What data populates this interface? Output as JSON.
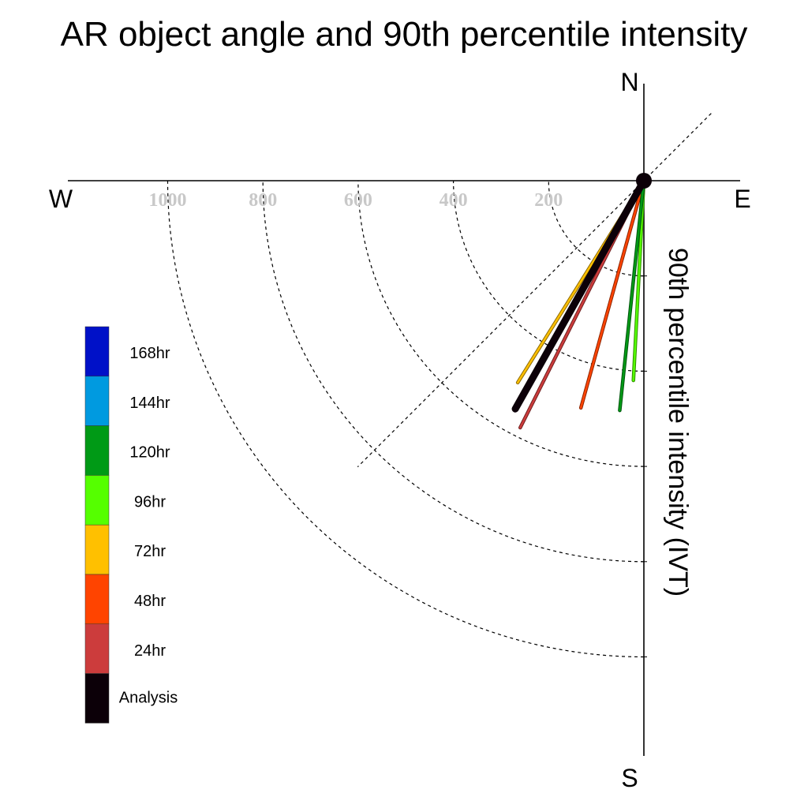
{
  "chart_data": {
    "type": "polar-vector",
    "title": "AR object angle and 90th percentile intensity",
    "radial_label": "90th percentile intensity (IVT)",
    "compass": {
      "north": "N",
      "south": "S",
      "east": "E",
      "west": "W"
    },
    "radial_ticks": [
      200,
      400,
      600,
      800,
      1000
    ],
    "radial_tick_labels": [
      "200",
      "400",
      "600",
      "800",
      "1000"
    ],
    "rlim": [
      0,
      1000
    ],
    "angle_convention": "degrees clockwise from north",
    "grid": true,
    "legend_placement": "left",
    "series": [
      {
        "name": "24hr",
        "color": "#cc3c3c",
        "angle": 206.6,
        "value": 580
      },
      {
        "name": "48hr",
        "color": "#ff4400",
        "angle": 195.5,
        "value": 495
      },
      {
        "name": "72hr",
        "color": "#ffc000",
        "angle": 212.0,
        "value": 500
      },
      {
        "name": "96hr",
        "color": "#55ff00",
        "angle": 183.0,
        "value": 420
      },
      {
        "name": "120hr",
        "color": "#009a16",
        "angle": 186.0,
        "value": 485
      },
      {
        "name": "Analysis",
        "color": "#0c0008",
        "angle": 209.4,
        "value": 550
      }
    ],
    "legend": [
      {
        "label": "168hr",
        "color": "#0011c8"
      },
      {
        "label": "144hr",
        "color": "#009ae0"
      },
      {
        "label": "120hr",
        "color": "#009a16"
      },
      {
        "label": "96hr",
        "color": "#55ff00"
      },
      {
        "label": "72hr",
        "color": "#ffc000"
      },
      {
        "label": "48hr",
        "color": "#ff4400"
      },
      {
        "label": "24hr",
        "color": "#cc3c3c"
      },
      {
        "label": "Analysis",
        "color": "#0c0008"
      }
    ]
  }
}
